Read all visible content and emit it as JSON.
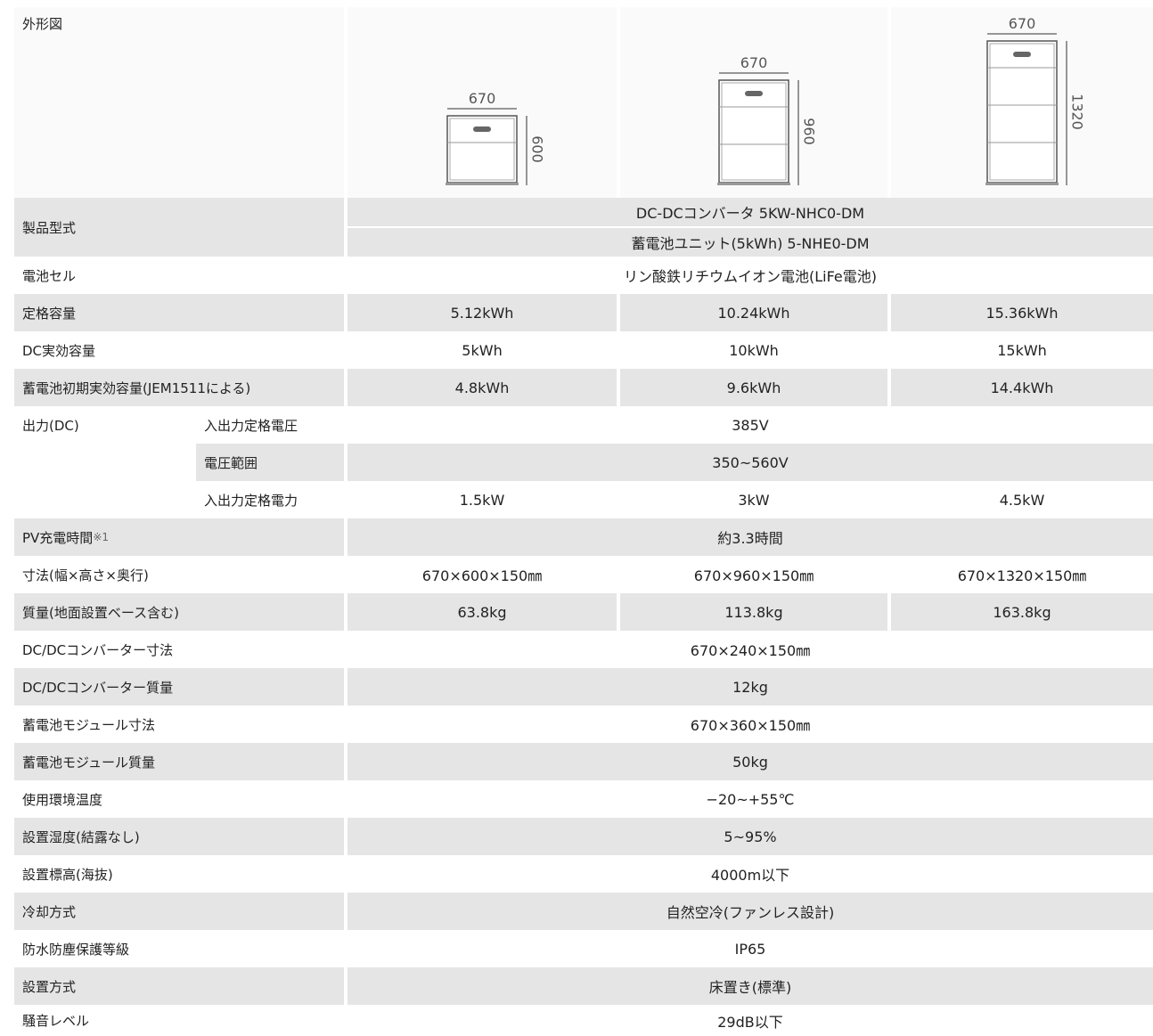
{
  "header": {
    "label": "外形図",
    "figures": [
      {
        "width": "670",
        "height": "600"
      },
      {
        "width": "670",
        "height": "960"
      },
      {
        "width": "670",
        "height": "1320"
      }
    ]
  },
  "rows": [
    {
      "label": "製品型式",
      "lines": [
        "DC-DCコンバータ 5KW-NHC0-DM",
        "蓄電池ユニット(5kWh) 5-NHE0-DM"
      ]
    },
    {
      "label": "電池セル",
      "values": [
        "リン酸鉄リチウムイオン電池(LiFe電池)"
      ]
    },
    {
      "label": "定格容量",
      "values": [
        "5.12kWh",
        "10.24kWh",
        "15.36kWh"
      ]
    },
    {
      "label": "DC実効容量",
      "values": [
        "5kWh",
        "10kWh",
        "15kWh"
      ]
    },
    {
      "label": "蓄電池初期実効容量(JEM1511による)",
      "values": [
        "4.8kWh",
        "9.6kWh",
        "14.4kWh"
      ]
    },
    {
      "label": "出力(DC)",
      "sub": [
        {
          "label": "入出力定格電圧",
          "values": [
            "385V"
          ]
        },
        {
          "label": "電圧範囲",
          "values": [
            "350~560V"
          ]
        },
        {
          "label": "入出力定格電力",
          "values": [
            "1.5kW",
            "3kW",
            "4.5kW"
          ]
        }
      ]
    },
    {
      "label": "PV充電時間",
      "note": "※1",
      "values": [
        "約3.3時間"
      ]
    },
    {
      "label": "寸法(幅×高さ×奥行)",
      "values": [
        "670×600×150㎜",
        "670×960×150㎜",
        "670×1320×150㎜"
      ]
    },
    {
      "label": "質量(地面設置ベース含む)",
      "values": [
        "63.8kg",
        "113.8kg",
        "163.8kg"
      ]
    },
    {
      "label": "DC/DCコンバーター寸法",
      "values": [
        "670×240×150㎜"
      ]
    },
    {
      "label": "DC/DCコンバーター質量",
      "values": [
        "12kg"
      ]
    },
    {
      "label": "蓄電池モジュール寸法",
      "values": [
        "670×360×150㎜"
      ]
    },
    {
      "label": "蓄電池モジュール質量",
      "values": [
        "50kg"
      ]
    },
    {
      "label": "使用環境温度",
      "values": [
        "−20~+55℃"
      ]
    },
    {
      "label": "設置湿度(結露なし)",
      "values": [
        "5~95%"
      ]
    },
    {
      "label": "設置標高(海抜)",
      "values": [
        "4000m以下"
      ]
    },
    {
      "label": "冷却方式",
      "values": [
        "自然空冷(ファンレス設計)"
      ]
    },
    {
      "label": "防水防塵保護等級",
      "values": [
        "IP65"
      ]
    },
    {
      "label": "設置方式",
      "values": [
        "床置き(標準)"
      ]
    },
    {
      "label": "騒音レベル",
      "values": [
        "29dB以下"
      ]
    }
  ]
}
